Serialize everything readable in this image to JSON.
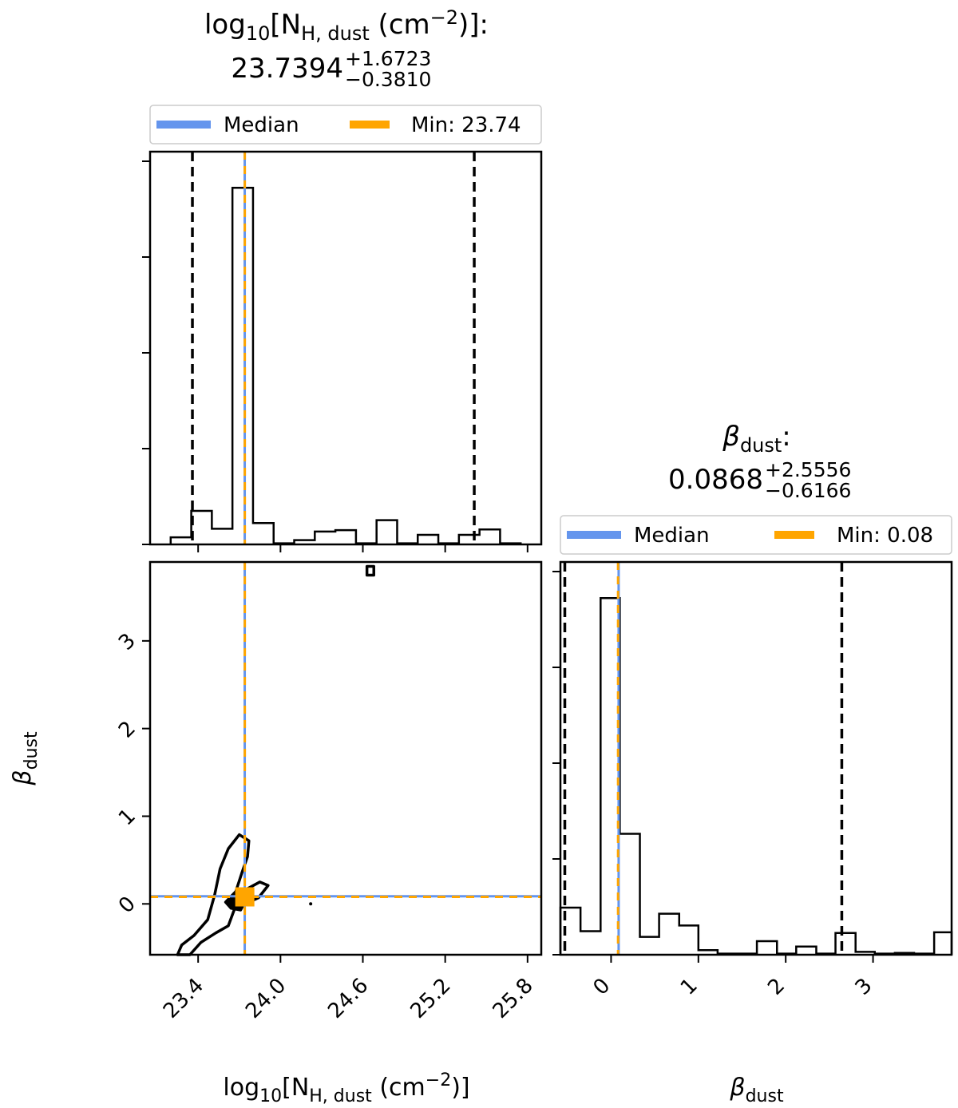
{
  "chart_data": [
    {
      "id": "nh-hist",
      "type": "histogram",
      "title_param_base": "log",
      "title_param_sub": "10",
      "title_param_rest": "[N",
      "title_param_hsub": "H, dust",
      "title_param_unit": " (cm",
      "title_param_exp": "−2",
      "title_param_close": ")]:",
      "title_value": "23.7394",
      "title_err_plus": "+1.6723",
      "title_err_minus": "−0.3810",
      "legend": [
        {
          "label": "Median",
          "color": "#6495ED"
        },
        {
          "label": "Min: 23.74",
          "color": "#FFA500"
        }
      ],
      "xlim": [
        23.05,
        25.9
      ],
      "ylim": [
        0,
        1.0
      ],
      "bin_edges": [
        23.2,
        23.35,
        23.5,
        23.65,
        23.8,
        23.95,
        24.1,
        24.25,
        24.4,
        24.55,
        24.7,
        24.85,
        25.0,
        25.15,
        25.3,
        25.45,
        25.6,
        25.75
      ],
      "counts": [
        0.02,
        0.094,
        0.044,
        1.0,
        0.06,
        0.003,
        0.012,
        0.036,
        0.04,
        0.003,
        0.068,
        0.003,
        0.027,
        0.003,
        0.027,
        0.042,
        0.003
      ],
      "median": 23.7394,
      "min_value": 23.74,
      "quantile_lo": 23.3584,
      "quantile_hi": 25.4117
    },
    {
      "id": "beta-hist",
      "type": "histogram",
      "title_param_base": "β",
      "title_param_sub": "dust",
      "title_param_close": ":",
      "title_value": "0.0868",
      "title_err_plus": "+2.5556",
      "title_err_minus": "−0.6166",
      "legend": [
        {
          "label": "Median",
          "color": "#6495ED"
        },
        {
          "label": "Min: 0.08",
          "color": "#FFA500"
        }
      ],
      "xlim": [
        -0.58,
        3.9
      ],
      "ylim": [
        0,
        1.0
      ],
      "bin_edges": [
        -0.58,
        -0.35,
        -0.12,
        0.1,
        0.33,
        0.55,
        0.78,
        1.0,
        1.22,
        1.45,
        1.67,
        1.9,
        2.12,
        2.35,
        2.57,
        2.8,
        3.02,
        3.25,
        3.47,
        3.7,
        3.9
      ],
      "counts": [
        0.132,
        0.066,
        1.0,
        0.339,
        0.05,
        0.115,
        0.082,
        0.013,
        0.003,
        0.003,
        0.038,
        0.003,
        0.023,
        0.003,
        0.061,
        0.008,
        0.003,
        0.005,
        0.003,
        0.063
      ],
      "median": 0.0868,
      "min_value": 0.08,
      "quantile_lo": -0.5298,
      "quantile_hi": 2.6424,
      "xticks": [
        0,
        1,
        2,
        3
      ],
      "xlabel_base": "β",
      "xlabel_sub": "dust"
    },
    {
      "id": "joint-contour",
      "type": "contour",
      "xlim": [
        23.05,
        25.9
      ],
      "ylim": [
        -0.58,
        3.9
      ],
      "xticks": [
        23.4,
        24.0,
        24.6,
        25.2,
        25.8
      ],
      "xtick_labels": [
        "23.4",
        "24.0",
        "24.6",
        "25.2",
        "25.8"
      ],
      "yticks": [
        0,
        1,
        2,
        3
      ],
      "xlabel_base": "log",
      "xlabel_sub": "10",
      "xlabel_rest": "[N",
      "xlabel_hsub": "H, dust",
      "xlabel_unit": " (cm",
      "xlabel_exp": "−2",
      "xlabel_close": ")]",
      "ylabel_base": "β",
      "ylabel_sub": "dust",
      "median_point": [
        23.7394,
        0.0868
      ],
      "min_point": [
        23.74,
        0.08
      ],
      "contour_outer": [
        [
          23.34,
          -0.58
        ],
        [
          23.42,
          -0.44
        ],
        [
          23.53,
          -0.33
        ],
        [
          23.62,
          -0.25
        ],
        [
          23.66,
          -0.08
        ],
        [
          23.72,
          0.14
        ],
        [
          23.85,
          0.25
        ],
        [
          23.91,
          0.21
        ],
        [
          23.84,
          0.07
        ],
        [
          23.74,
          0.0
        ],
        [
          23.67,
          0.12
        ],
        [
          23.72,
          0.36
        ],
        [
          23.76,
          0.54
        ],
        [
          23.77,
          0.72
        ],
        [
          23.7,
          0.79
        ],
        [
          23.62,
          0.63
        ],
        [
          23.56,
          0.4
        ],
        [
          23.52,
          0.1
        ],
        [
          23.47,
          -0.18
        ],
        [
          23.37,
          -0.36
        ],
        [
          23.28,
          -0.47
        ],
        [
          23.25,
          -0.58
        ]
      ],
      "contour_inner": [
        [
          23.64,
          -0.05
        ],
        [
          23.71,
          -0.07
        ],
        [
          23.75,
          0.05
        ],
        [
          23.76,
          0.13
        ],
        [
          23.68,
          0.15
        ],
        [
          23.6,
          0.02
        ]
      ],
      "small_island": [
        [
          24.63,
          3.75
        ],
        [
          24.68,
          3.75
        ],
        [
          24.68,
          3.85
        ],
        [
          24.63,
          3.85
        ]
      ],
      "dot": [
        24.22,
        0.0
      ]
    }
  ],
  "colors": {
    "median": "#6495ED",
    "min": "#FFA500",
    "quantile": "#000000",
    "hist": "#000000"
  }
}
